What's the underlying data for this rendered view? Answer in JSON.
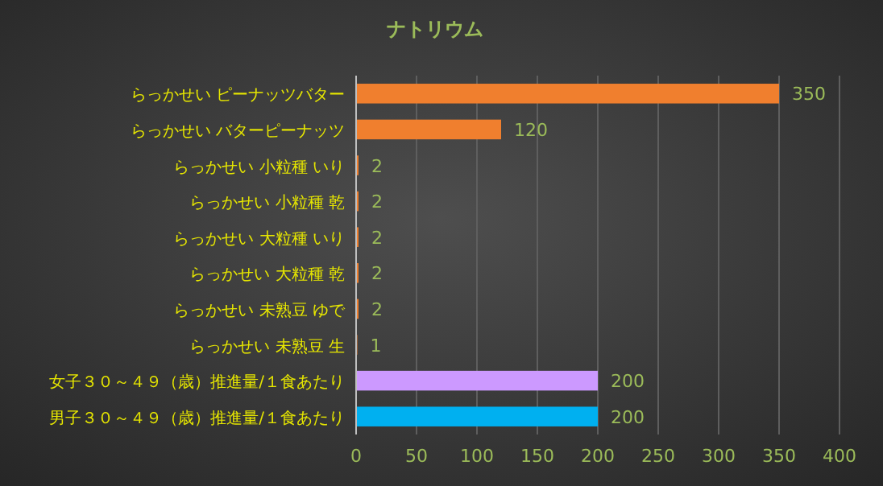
{
  "chart_data": {
    "type": "bar",
    "orientation": "horizontal",
    "title": "ナトリウム",
    "categories": [
      "らっかせい ピーナッツバター",
      "らっかせい バターピーナッツ",
      "らっかせい 小粒種 いり",
      "らっかせい 小粒種 乾",
      "らっかせい 大粒種 いり",
      "らっかせい 大粒種 乾",
      "らっかせい 未熟豆 ゆで",
      "らっかせい 未熟豆 生",
      "女子３０～４９（歳）推進量/１食あたり",
      "男子３０～４９（歳）推進量/１食あたり"
    ],
    "values": [
      350,
      120,
      2,
      2,
      2,
      2,
      2,
      1,
      200,
      200
    ],
    "colors": [
      "#f07f2e",
      "#f07f2e",
      "#f07f2e",
      "#f07f2e",
      "#f07f2e",
      "#f07f2e",
      "#f07f2e",
      "#f07f2e",
      "#cc99ff",
      "#00b0f0"
    ],
    "xlim": [
      0,
      400
    ],
    "xticks": [
      0,
      50,
      100,
      150,
      200,
      250,
      300,
      350,
      400
    ],
    "grid": "x",
    "data_labels": true
  }
}
